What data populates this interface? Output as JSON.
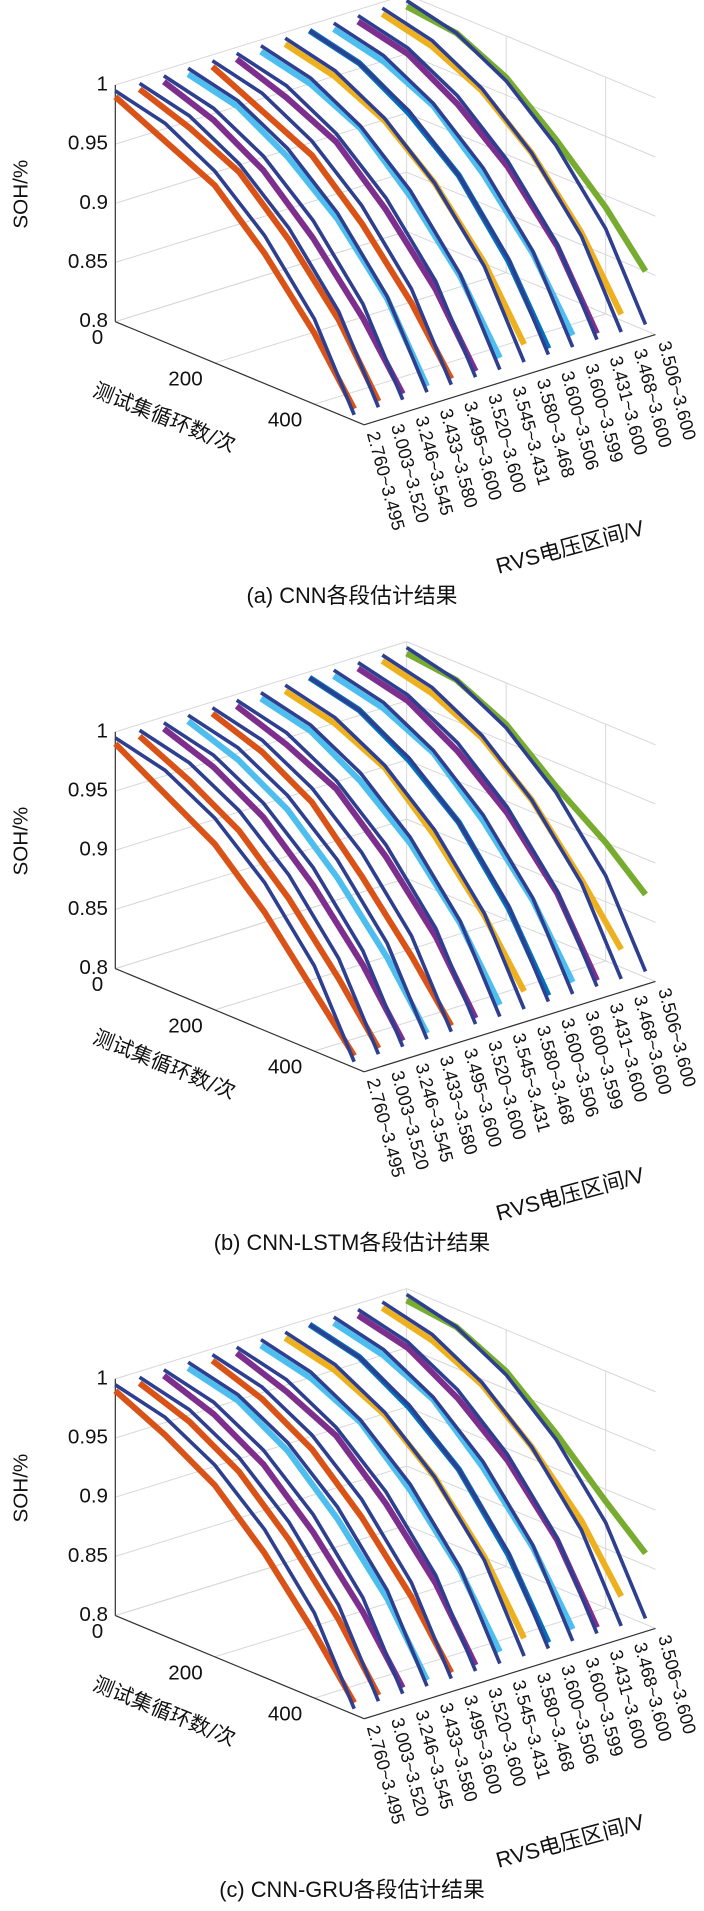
{
  "chart_data": [
    {
      "type": "line3d",
      "caption": "(a) CNN各段估计结果",
      "zlabel": "SOH/%",
      "xlabel": "测试集循环数/次",
      "ylabel": "RVS电压区间/V",
      "zlim": [
        0.8,
        1
      ],
      "zticks": [
        0.8,
        0.85,
        0.9,
        0.95,
        1
      ],
      "xlim": [
        0,
        500
      ],
      "xticks": [
        0,
        200,
        400
      ],
      "grid": true,
      "categories": [
        "2.760~3.495",
        "3.003~3.520",
        "3.246~3.545",
        "3.433~3.580",
        "3.495~3.600",
        "3.520~3.600",
        "3.545~3.431",
        "3.580~3.468",
        "3.600~3.506",
        "3.600~3.599",
        "3.431~3.600",
        "3.468~3.600",
        "3.506~3.600"
      ],
      "x": [
        0,
        100,
        200,
        300,
        400,
        480
      ],
      "reference": {
        "color": "#2e3f8f",
        "values": [
          0.995,
          0.985,
          0.962,
          0.925,
          0.872,
          0.805
        ]
      },
      "series": [
        {
          "color": "#d95319",
          "values": [
            0.99,
            0.97,
            0.95,
            0.91,
            0.86,
            0.81
          ]
        },
        {
          "color": "#d95319",
          "values": [
            0.99,
            0.975,
            0.955,
            0.915,
            0.865,
            0.81
          ]
        },
        {
          "color": "#7e2f8e",
          "values": [
            0.99,
            0.975,
            0.95,
            0.91,
            0.86,
            0.81
          ]
        },
        {
          "color": "#4dbeee",
          "values": [
            0.99,
            0.98,
            0.955,
            0.92,
            0.87,
            0.81
          ]
        },
        {
          "color": "#d95319",
          "values": [
            0.99,
            0.97,
            0.95,
            0.91,
            0.86,
            0.81
          ]
        },
        {
          "color": "#7e2f8e",
          "values": [
            0.99,
            0.975,
            0.955,
            0.915,
            0.865,
            0.81
          ]
        },
        {
          "color": "#4dbeee",
          "values": [
            0.99,
            0.98,
            0.96,
            0.92,
            0.87,
            0.815
          ]
        },
        {
          "color": "#edb120",
          "values": [
            0.99,
            0.98,
            0.96,
            0.925,
            0.875,
            0.82
          ]
        },
        {
          "color": "#0072bd",
          "values": [
            0.995,
            0.985,
            0.96,
            0.925,
            0.87,
            0.81
          ]
        },
        {
          "color": "#4dbeee",
          "values": [
            0.99,
            0.98,
            0.96,
            0.92,
            0.87,
            0.815
          ]
        },
        {
          "color": "#7e2f8e",
          "values": [
            0.99,
            0.98,
            0.955,
            0.92,
            0.87,
            0.81
          ]
        },
        {
          "color": "#edb120",
          "values": [
            0.99,
            0.98,
            0.96,
            0.925,
            0.875,
            0.82
          ]
        },
        {
          "color": "#77ac30",
          "values": [
            0.99,
            0.985,
            0.965,
            0.93,
            0.89,
            0.85
          ]
        }
      ]
    },
    {
      "type": "line3d",
      "caption": "(b) CNN-LSTM各段估计结果",
      "zlabel": "SOH/%",
      "xlabel": "测试集循环数/次",
      "ylabel": "RVS电压区间/V",
      "zlim": [
        0.8,
        1
      ],
      "zticks": [
        0.8,
        0.85,
        0.9,
        0.95,
        1
      ],
      "xlim": [
        0,
        500
      ],
      "xticks": [
        0,
        200,
        400
      ],
      "grid": true,
      "categories": [
        "2.760~3.495",
        "3.003~3.520",
        "3.246~3.545",
        "3.433~3.580",
        "3.495~3.600",
        "3.520~3.600",
        "3.545~3.431",
        "3.580~3.468",
        "3.600~3.506",
        "3.600~3.599",
        "3.431~3.600",
        "3.468~3.600",
        "3.506~3.600"
      ],
      "x": [
        0,
        100,
        200,
        300,
        400,
        480
      ],
      "reference": {
        "color": "#2e3f8f",
        "values": [
          0.995,
          0.985,
          0.962,
          0.925,
          0.872,
          0.805
        ]
      },
      "series": [
        {
          "color": "#d95319",
          "values": [
            0.99,
            0.965,
            0.94,
            0.9,
            0.85,
            0.81
          ]
        },
        {
          "color": "#d95319",
          "values": [
            0.99,
            0.97,
            0.945,
            0.905,
            0.855,
            0.81
          ]
        },
        {
          "color": "#7e2f8e",
          "values": [
            0.99,
            0.975,
            0.95,
            0.91,
            0.86,
            0.81
          ]
        },
        {
          "color": "#4dbeee",
          "values": [
            0.99,
            0.975,
            0.95,
            0.91,
            0.86,
            0.81
          ]
        },
        {
          "color": "#d95319",
          "values": [
            0.99,
            0.975,
            0.95,
            0.905,
            0.855,
            0.81
          ]
        },
        {
          "color": "#7e2f8e",
          "values": [
            0.99,
            0.975,
            0.955,
            0.915,
            0.865,
            0.81
          ]
        },
        {
          "color": "#4dbeee",
          "values": [
            0.99,
            0.98,
            0.955,
            0.92,
            0.87,
            0.815
          ]
        },
        {
          "color": "#edb120",
          "values": [
            0.99,
            0.98,
            0.96,
            0.92,
            0.87,
            0.82
          ]
        },
        {
          "color": "#0072bd",
          "values": [
            0.995,
            0.985,
            0.96,
            0.925,
            0.87,
            0.81
          ]
        },
        {
          "color": "#4dbeee",
          "values": [
            0.99,
            0.98,
            0.96,
            0.92,
            0.87,
            0.815
          ]
        },
        {
          "color": "#7e2f8e",
          "values": [
            0.99,
            0.98,
            0.955,
            0.92,
            0.87,
            0.81
          ]
        },
        {
          "color": "#edb120",
          "values": [
            0.99,
            0.98,
            0.96,
            0.925,
            0.875,
            0.83
          ]
        },
        {
          "color": "#77ac30",
          "values": [
            0.99,
            0.985,
            0.965,
            0.93,
            0.9,
            0.87
          ]
        }
      ]
    },
    {
      "type": "line3d",
      "caption": "(c) CNN-GRU各段估计结果",
      "zlabel": "SOH/%",
      "xlabel": "测试集循环数/次",
      "ylabel": "RVS电压区间/V",
      "zlim": [
        0.8,
        1
      ],
      "zticks": [
        0.8,
        0.85,
        0.9,
        0.95,
        1
      ],
      "xlim": [
        0,
        500
      ],
      "xticks": [
        0,
        200,
        400
      ],
      "grid": true,
      "categories": [
        "2.760~3.495",
        "3.003~3.520",
        "3.246~3.545",
        "3.433~3.580",
        "3.495~3.600",
        "3.520~3.600",
        "3.545~3.431",
        "3.580~3.468",
        "3.600~3.506",
        "3.600~3.599",
        "3.431~3.600",
        "3.468~3.600",
        "3.506~3.600"
      ],
      "x": [
        0,
        100,
        200,
        300,
        400,
        480
      ],
      "reference": {
        "color": "#2e3f8f",
        "values": [
          0.995,
          0.985,
          0.962,
          0.925,
          0.872,
          0.805
        ]
      },
      "series": [
        {
          "color": "#d95319",
          "values": [
            0.99,
            0.97,
            0.945,
            0.905,
            0.855,
            0.81
          ]
        },
        {
          "color": "#d95319",
          "values": [
            0.99,
            0.975,
            0.95,
            0.91,
            0.86,
            0.81
          ]
        },
        {
          "color": "#7e2f8e",
          "values": [
            0.99,
            0.975,
            0.95,
            0.91,
            0.86,
            0.81
          ]
        },
        {
          "color": "#4dbeee",
          "values": [
            0.99,
            0.98,
            0.955,
            0.915,
            0.865,
            0.81
          ]
        },
        {
          "color": "#d95319",
          "values": [
            0.99,
            0.975,
            0.95,
            0.91,
            0.86,
            0.81
          ]
        },
        {
          "color": "#7e2f8e",
          "values": [
            0.99,
            0.975,
            0.955,
            0.915,
            0.865,
            0.81
          ]
        },
        {
          "color": "#4dbeee",
          "values": [
            0.99,
            0.98,
            0.96,
            0.92,
            0.87,
            0.815
          ]
        },
        {
          "color": "#edb120",
          "values": [
            0.99,
            0.98,
            0.96,
            0.925,
            0.875,
            0.82
          ]
        },
        {
          "color": "#0072bd",
          "values": [
            0.995,
            0.985,
            0.96,
            0.925,
            0.87,
            0.81
          ]
        },
        {
          "color": "#4dbeee",
          "values": [
            0.99,
            0.98,
            0.96,
            0.92,
            0.87,
            0.815
          ]
        },
        {
          "color": "#7e2f8e",
          "values": [
            0.99,
            0.98,
            0.955,
            0.92,
            0.87,
            0.81
          ]
        },
        {
          "color": "#edb120",
          "values": [
            0.99,
            0.98,
            0.96,
            0.925,
            0.88,
            0.83
          ]
        },
        {
          "color": "#77ac30",
          "values": [
            0.99,
            0.985,
            0.965,
            0.93,
            0.89,
            0.86
          ]
        }
      ]
    }
  ]
}
